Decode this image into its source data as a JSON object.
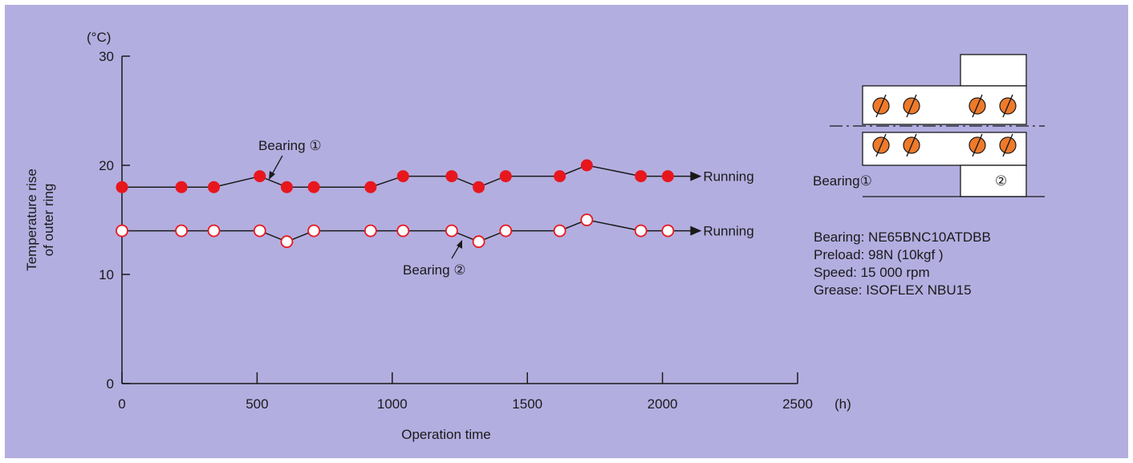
{
  "chart_data": {
    "type": "line",
    "xlabel": "Operation time",
    "x_unit": "(h)",
    "ylabel": [
      "Temperature rise",
      "of outer ring"
    ],
    "y_unit": "(°C)",
    "xlim": [
      0,
      2500
    ],
    "ylim": [
      0,
      30
    ],
    "x_ticks": [
      0,
      500,
      1000,
      1500,
      2000,
      2500
    ],
    "y_ticks": [
      0,
      10,
      20,
      30
    ],
    "grid": false,
    "series": [
      {
        "name": "Bearing ①",
        "marker": "filled-circle",
        "color": "#e8171e",
        "end_label": "Running",
        "points": [
          [
            0,
            18
          ],
          [
            220,
            18
          ],
          [
            340,
            18
          ],
          [
            510,
            19
          ],
          [
            610,
            18
          ],
          [
            710,
            18
          ],
          [
            920,
            18
          ],
          [
            1040,
            19
          ],
          [
            1220,
            19
          ],
          [
            1320,
            18
          ],
          [
            1420,
            19
          ],
          [
            1620,
            19
          ],
          [
            1720,
            20
          ],
          [
            1920,
            19
          ],
          [
            2020,
            19
          ]
        ]
      },
      {
        "name": "Bearing ②",
        "marker": "open-circle",
        "color": "#e8171e",
        "end_label": "Running",
        "points": [
          [
            0,
            14
          ],
          [
            220,
            14
          ],
          [
            340,
            14
          ],
          [
            510,
            14
          ],
          [
            610,
            13
          ],
          [
            710,
            14
          ],
          [
            920,
            14
          ],
          [
            1040,
            14
          ],
          [
            1220,
            14
          ],
          [
            1320,
            13
          ],
          [
            1420,
            14
          ],
          [
            1620,
            14
          ],
          [
            1720,
            15
          ],
          [
            1920,
            14
          ],
          [
            2020,
            14
          ]
        ]
      }
    ]
  },
  "diagram": {
    "label1": "Bearing①",
    "label2": "②",
    "ball_color": "#ee7a2a"
  },
  "specs": [
    "Bearing: NE65BNC10ATDBB",
    "Preload: 98N (10kgf )",
    "Speed: 15 000 rpm",
    "Grease: ISOFLEX NBU15"
  ]
}
